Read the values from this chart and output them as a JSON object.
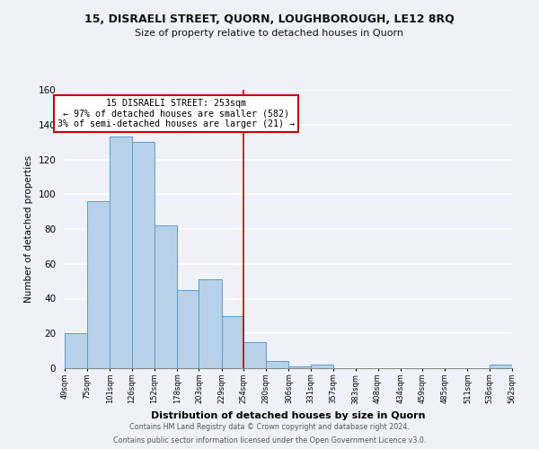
{
  "title": "15, DISRAELI STREET, QUORN, LOUGHBOROUGH, LE12 8RQ",
  "subtitle": "Size of property relative to detached houses in Quorn",
  "xlabel": "Distribution of detached houses by size in Quorn",
  "ylabel": "Number of detached properties",
  "bar_values": [
    20,
    96,
    133,
    130,
    82,
    45,
    51,
    30,
    15,
    4,
    1,
    2,
    0,
    0,
    0,
    0,
    0,
    0,
    0,
    2
  ],
  "bin_edges": [
    49,
    75,
    101,
    126,
    152,
    178,
    203,
    229,
    254,
    280,
    306,
    331,
    357,
    383,
    408,
    434,
    459,
    485,
    511,
    536,
    562
  ],
  "x_tick_labels": [
    "49sqm",
    "75sqm",
    "101sqm",
    "126sqm",
    "152sqm",
    "178sqm",
    "203sqm",
    "229sqm",
    "254sqm",
    "280sqm",
    "306sqm",
    "331sqm",
    "357sqm",
    "383sqm",
    "408sqm",
    "434sqm",
    "459sqm",
    "485sqm",
    "511sqm",
    "536sqm",
    "562sqm"
  ],
  "bar_color": "#b8d0e8",
  "bar_edge_color": "#5b9bd5",
  "vline_x": 254,
  "vline_color": "#cc0000",
  "annotation_title": "15 DISRAELI STREET: 253sqm",
  "annotation_line1": "← 97% of detached houses are smaller (582)",
  "annotation_line2": "3% of semi-detached houses are larger (21) →",
  "annotation_box_edge": "#cc0000",
  "footer_line1": "Contains HM Land Registry data © Crown copyright and database right 2024.",
  "footer_line2": "Contains public sector information licensed under the Open Government Licence v3.0.",
  "yticks": [
    0,
    20,
    40,
    60,
    80,
    100,
    120,
    140,
    160
  ],
  "ylim": [
    0,
    160
  ],
  "background_color": "#eef2f8"
}
